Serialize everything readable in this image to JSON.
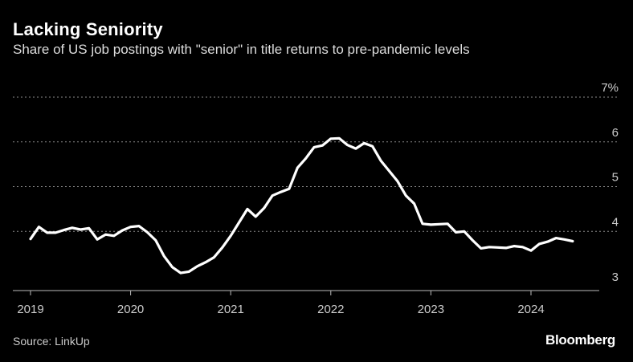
{
  "header": {
    "title": "Lacking Seniority",
    "subtitle": "Share of US job postings with \"senior\" in title returns to pre-pandemic levels"
  },
  "footer": {
    "source": "Source: LinkUp",
    "brand": "Bloomberg"
  },
  "colors": {
    "background": "#000000",
    "line": "#ffffff",
    "grid": "#8a8a8a",
    "axis": "#bbbbbb"
  },
  "chart_data": {
    "type": "line",
    "title": "Lacking Seniority",
    "subtitle": "Share of US job postings with \"senior\" in title returns to pre-pandemic levels",
    "xlabel": "",
    "ylabel": "",
    "ylim": [
      3,
      7
    ],
    "xlim": [
      "2019-01",
      "2024-07"
    ],
    "grid": true,
    "y_ticks": [
      3,
      4,
      5,
      6,
      7
    ],
    "y_tick_labels": [
      "3",
      "4",
      "5",
      "6",
      "7%"
    ],
    "x_tick_labels": [
      "2019",
      "2020",
      "2021",
      "2022",
      "2023",
      "2024"
    ],
    "series": [
      {
        "x": [
          "2019-01",
          "2019-02",
          "2019-03",
          "2019-04",
          "2019-05",
          "2019-06",
          "2019-07",
          "2019-08",
          "2019-09",
          "2019-10",
          "2019-11",
          "2019-12",
          "2020-01",
          "2020-02",
          "2020-03",
          "2020-04",
          "2020-05",
          "2020-06",
          "2020-07",
          "2020-08",
          "2020-09",
          "2020-10",
          "2020-11",
          "2020-12",
          "2021-01",
          "2021-02",
          "2021-03",
          "2021-04",
          "2021-05",
          "2021-06",
          "2021-07",
          "2021-08",
          "2021-09",
          "2021-10",
          "2021-11",
          "2021-12",
          "2022-01",
          "2022-02",
          "2022-03",
          "2022-04",
          "2022-05",
          "2022-06",
          "2022-07",
          "2022-08",
          "2022-09",
          "2022-10",
          "2022-11",
          "2022-12",
          "2023-01",
          "2023-02",
          "2023-03",
          "2023-04",
          "2023-05",
          "2023-06",
          "2023-07",
          "2023-08",
          "2023-09",
          "2023-10",
          "2023-11",
          "2023-12",
          "2024-01",
          "2024-02",
          "2024-03",
          "2024-04",
          "2024-05",
          "2024-06"
        ],
        "values": [
          3.83,
          4.1,
          3.97,
          3.97,
          4.03,
          4.08,
          4.04,
          4.07,
          3.82,
          3.93,
          3.9,
          4.02,
          4.1,
          4.12,
          3.98,
          3.8,
          3.45,
          3.2,
          3.07,
          3.1,
          3.22,
          3.31,
          3.42,
          3.64,
          3.9,
          4.2,
          4.5,
          4.33,
          4.52,
          4.8,
          4.88,
          4.95,
          5.42,
          5.63,
          5.88,
          5.92,
          6.07,
          6.08,
          5.93,
          5.85,
          5.97,
          5.9,
          5.58,
          5.35,
          5.12,
          4.8,
          4.62,
          4.17,
          4.15,
          4.16,
          4.17,
          3.98,
          4.0,
          3.8,
          3.62,
          3.65,
          3.64,
          3.63,
          3.67,
          3.65,
          3.57,
          3.72,
          3.77,
          3.85,
          3.82,
          3.78
        ]
      }
    ]
  }
}
